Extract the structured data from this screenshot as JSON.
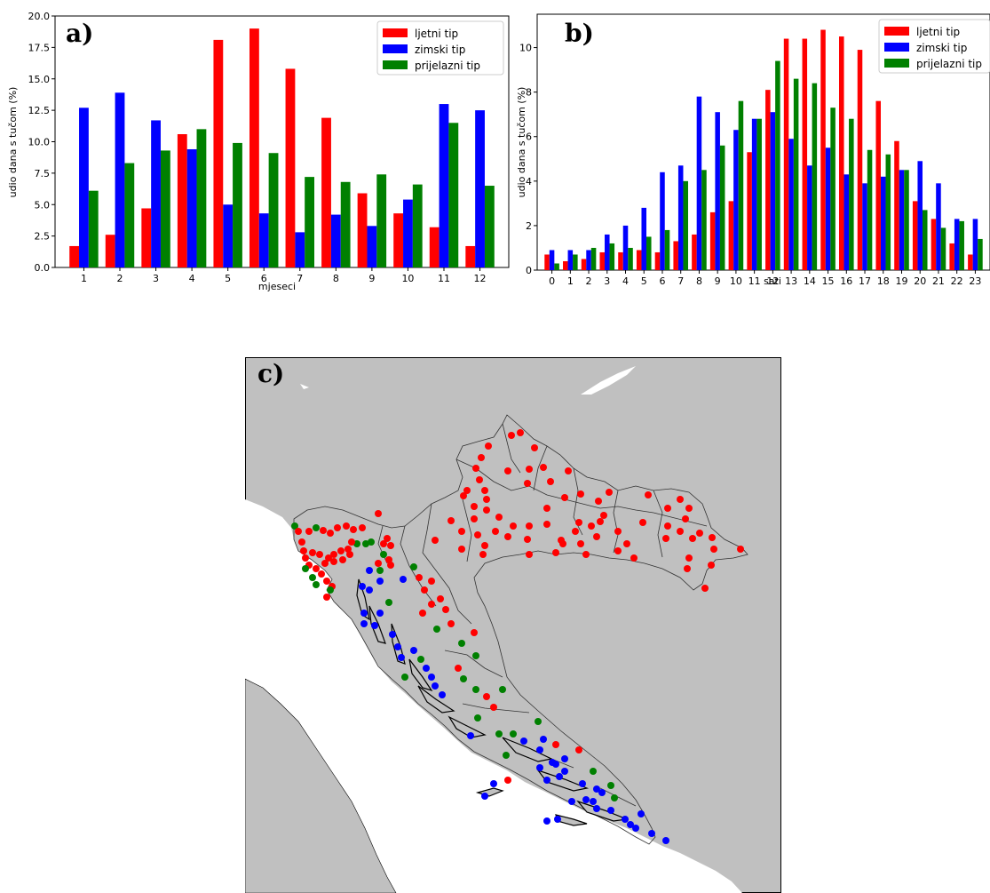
{
  "chart_data": [
    {
      "panel": "a)",
      "type": "bar",
      "xlabel": "mjeseci",
      "ylabel": "udio dana s tučom (%)",
      "categories": [
        "1",
        "2",
        "3",
        "4",
        "5",
        "6",
        "7",
        "8",
        "9",
        "10",
        "11",
        "12"
      ],
      "ylim": [
        0,
        20
      ],
      "yticks": [
        "0.0",
        "2.5",
        "5.0",
        "7.5",
        "10.0",
        "12.5",
        "15.0",
        "17.5",
        "20.0"
      ],
      "legend_position": "top-right",
      "series": [
        {
          "name": "ljetni tip",
          "color": "#ff0000",
          "values": [
            1.7,
            2.6,
            4.7,
            10.6,
            18.1,
            19.0,
            15.8,
            11.9,
            5.9,
            4.3,
            3.2,
            1.7
          ]
        },
        {
          "name": "zimski tip",
          "color": "#0000ff",
          "values": [
            12.7,
            13.9,
            11.7,
            9.4,
            5.0,
            4.3,
            2.8,
            4.2,
            3.3,
            5.4,
            13.0,
            12.5
          ]
        },
        {
          "name": "prijelazni tip",
          "color": "#008000",
          "values": [
            6.1,
            8.3,
            9.3,
            11.0,
            9.9,
            9.1,
            7.2,
            6.8,
            7.4,
            6.6,
            11.5,
            6.5
          ]
        }
      ]
    },
    {
      "panel": "b)",
      "type": "bar",
      "xlabel": "sati",
      "ylabel": "udio dana s tučom (%)",
      "categories": [
        "0",
        "1",
        "2",
        "3",
        "4",
        "5",
        "6",
        "7",
        "8",
        "9",
        "10",
        "11",
        "12",
        "13",
        "14",
        "15",
        "16",
        "17",
        "18",
        "19",
        "20",
        "21",
        "22",
        "23"
      ],
      "ylim": [
        0,
        11.5
      ],
      "yticks": [
        "0",
        "2",
        "4",
        "6",
        "8",
        "10"
      ],
      "legend_position": "top-right",
      "series": [
        {
          "name": "ljetni tip",
          "color": "#ff0000",
          "values": [
            0.7,
            0.4,
            0.5,
            0.8,
            0.8,
            0.9,
            0.8,
            1.3,
            1.6,
            2.6,
            3.1,
            5.3,
            8.1,
            10.4,
            10.4,
            10.8,
            10.5,
            9.9,
            7.6,
            5.8,
            3.1,
            2.3,
            1.2,
            0.7
          ]
        },
        {
          "name": "zimski tip",
          "color": "#0000ff",
          "values": [
            0.9,
            0.9,
            0.9,
            1.6,
            2.0,
            2.8,
            4.4,
            4.7,
            7.8,
            7.1,
            6.3,
            6.8,
            7.1,
            5.9,
            4.7,
            5.5,
            4.3,
            3.9,
            4.2,
            4.5,
            4.9,
            3.9,
            2.3,
            2.3
          ]
        },
        {
          "name": "prijelazni tip",
          "color": "#008000",
          "values": [
            0.3,
            0.7,
            1.0,
            1.2,
            1.0,
            1.5,
            1.8,
            4.0,
            4.5,
            5.6,
            7.6,
            6.8,
            9.4,
            8.6,
            8.4,
            7.3,
            6.8,
            5.4,
            5.2,
            4.5,
            2.7,
            1.9,
            2.2,
            1.4
          ]
        }
      ]
    }
  ],
  "map": {
    "panel": "c)",
    "ocean_color": "#ffffff",
    "land_color": "#c0c0c0",
    "legend_colors": {
      "ljetni tip": "#ff0000",
      "zimski tip": "#0000ff",
      "prijelazni tip": "#008000"
    }
  }
}
